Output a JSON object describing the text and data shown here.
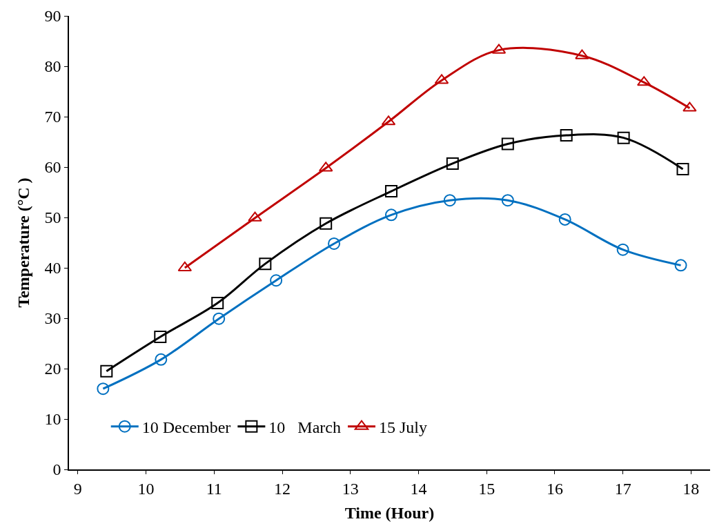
{
  "chart_data": {
    "type": "line",
    "xlabel": "Time (Hour)",
    "ylabel": "Temperature (°C )",
    "xlim": [
      8.87,
      18.28
    ],
    "xticks": [
      9,
      10,
      11,
      12,
      13,
      14,
      15,
      16,
      17,
      18
    ],
    "ylim": [
      0,
      90
    ],
    "yticks": [
      0,
      10,
      20,
      30,
      40,
      50,
      60,
      70,
      80,
      90
    ],
    "legend": "bottom",
    "line_style": "solid",
    "series": [
      {
        "name": "10 December",
        "color": "#0070c0",
        "marker": "circle",
        "x": [
          9.37,
          10.22,
          11.07,
          11.91,
          12.76,
          13.6,
          14.46,
          15.31,
          16.15,
          17.0,
          17.85
        ],
        "values": [
          16,
          21.8,
          29.9,
          37.5,
          44.8,
          50.5,
          53.4,
          53.4,
          49.6,
          43.6,
          40.5
        ]
      },
      {
        "name": "10   March",
        "color": "#000000",
        "marker": "square",
        "x": [
          9.42,
          10.21,
          11.05,
          11.75,
          12.64,
          13.6,
          14.5,
          15.31,
          16.17,
          17.01,
          17.88
        ],
        "values": [
          19.5,
          26.3,
          33,
          40.8,
          48.8,
          55.2,
          60.7,
          64.6,
          66.3,
          65.8,
          59.6
        ]
      },
      {
        "name": "15 July",
        "color": "#c00000",
        "marker": "triangle",
        "x": [
          10.57,
          11.6,
          12.64,
          13.56,
          14.34,
          15.18,
          16.4,
          17.31,
          17.98
        ],
        "values": [
          40,
          49.9,
          59.8,
          69,
          77.2,
          83.2,
          82.1,
          76.8,
          71.7
        ]
      }
    ]
  }
}
